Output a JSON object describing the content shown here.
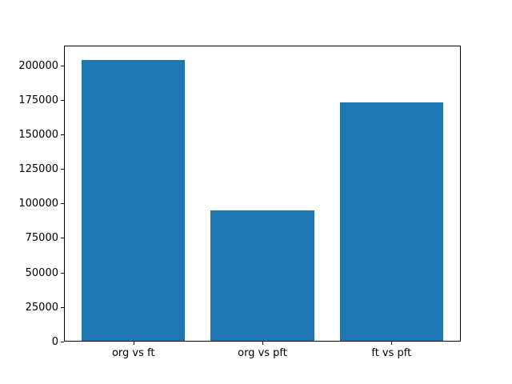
{
  "chart_data": {
    "type": "bar",
    "title": "",
    "xlabel": "",
    "ylabel": "",
    "categories": [
      "org vs ft",
      "org vs pft",
      "ft vs pft"
    ],
    "values": [
      204000,
      95000,
      173000
    ],
    "yticks": [
      0,
      25000,
      50000,
      75000,
      100000,
      125000,
      150000,
      175000,
      200000
    ],
    "ylim": [
      0,
      214200
    ],
    "bar_color": "#1f77b4",
    "axis_color": "#000000",
    "background_color": "#ffffff",
    "grid": false,
    "legend": null,
    "bar_width_fraction": 0.8
  }
}
